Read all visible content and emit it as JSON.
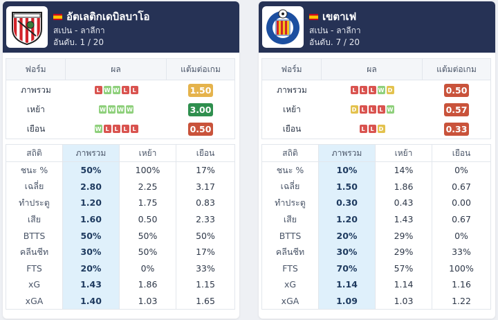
{
  "labels": {
    "form": "ฟอร์ม",
    "result": "ผล",
    "ppg": "แต้มต่อเกม",
    "stats": "สถิติ",
    "overall": "ภาพรวม",
    "home": "เหย้า",
    "away": "เยือน"
  },
  "teams": [
    {
      "name": "อัตเลติกเดบิลบาโอ",
      "league": "สเปน - ลาลีกา",
      "rank": "อันดับ. 1 / 20",
      "flag": "spain-flag",
      "logo": "athletic-club-crest",
      "form_rows": [
        {
          "label": "ภาพรวม",
          "results": [
            "L",
            "W",
            "W",
            "L",
            "L"
          ],
          "ppg": "1.50",
          "ppg_color": "#e5b34c"
        },
        {
          "label": "เหย้า",
          "results": [
            "W",
            "W",
            "W",
            "W"
          ],
          "ppg": "3.00",
          "ppg_color": "#2f8f4e"
        },
        {
          "label": "เยือน",
          "results": [
            "W",
            "L",
            "L",
            "L",
            "L"
          ],
          "ppg": "0.50",
          "ppg_color": "#c9533b"
        }
      ],
      "stats": [
        {
          "label": "ชนะ %",
          "overall": "50%",
          "home": "100%",
          "away": "17%"
        },
        {
          "label": "เฉลี่ย",
          "overall": "2.80",
          "home": "2.25",
          "away": "3.17"
        },
        {
          "label": "ทำประตู",
          "overall": "1.20",
          "home": "1.75",
          "away": "0.83"
        },
        {
          "label": "เสีย",
          "overall": "1.60",
          "home": "0.50",
          "away": "2.33"
        },
        {
          "label": "BTTS",
          "overall": "50%",
          "home": "50%",
          "away": "50%"
        },
        {
          "label": "คลีนชีท",
          "overall": "30%",
          "home": "50%",
          "away": "17%"
        },
        {
          "label": "FTS",
          "overall": "20%",
          "home": "0%",
          "away": "33%"
        },
        {
          "label": "xG",
          "overall": "1.43",
          "home": "1.86",
          "away": "1.15"
        },
        {
          "label": "xGA",
          "overall": "1.40",
          "home": "1.03",
          "away": "1.65"
        }
      ]
    },
    {
      "name": "เขตาเฟ",
      "league": "สเปน - ลาลีกา",
      "rank": "อันดับ. 7 / 20",
      "flag": "spain-flag",
      "logo": "getafe-crest",
      "form_rows": [
        {
          "label": "ภาพรวม",
          "results": [
            "L",
            "L",
            "L",
            "W",
            "D"
          ],
          "ppg": "0.50",
          "ppg_color": "#c9533b"
        },
        {
          "label": "เหย้า",
          "results": [
            "D",
            "L",
            "L",
            "L",
            "W"
          ],
          "ppg": "0.57",
          "ppg_color": "#c9533b"
        },
        {
          "label": "เยือน",
          "results": [
            "L",
            "L",
            "D"
          ],
          "ppg": "0.33",
          "ppg_color": "#c9533b"
        }
      ],
      "stats": [
        {
          "label": "ชนะ %",
          "overall": "10%",
          "home": "14%",
          "away": "0%"
        },
        {
          "label": "เฉลี่ย",
          "overall": "1.50",
          "home": "1.86",
          "away": "0.67"
        },
        {
          "label": "ทำประตู",
          "overall": "0.30",
          "home": "0.43",
          "away": "0.00"
        },
        {
          "label": "เสีย",
          "overall": "1.20",
          "home": "1.43",
          "away": "0.67"
        },
        {
          "label": "BTTS",
          "overall": "20%",
          "home": "29%",
          "away": "0%"
        },
        {
          "label": "คลีนชีท",
          "overall": "30%",
          "home": "29%",
          "away": "33%"
        },
        {
          "label": "FTS",
          "overall": "70%",
          "home": "57%",
          "away": "100%"
        },
        {
          "label": "xG",
          "overall": "1.14",
          "home": "1.14",
          "away": "1.16"
        },
        {
          "label": "xGA",
          "overall": "1.09",
          "home": "1.03",
          "away": "1.22"
        }
      ]
    }
  ]
}
